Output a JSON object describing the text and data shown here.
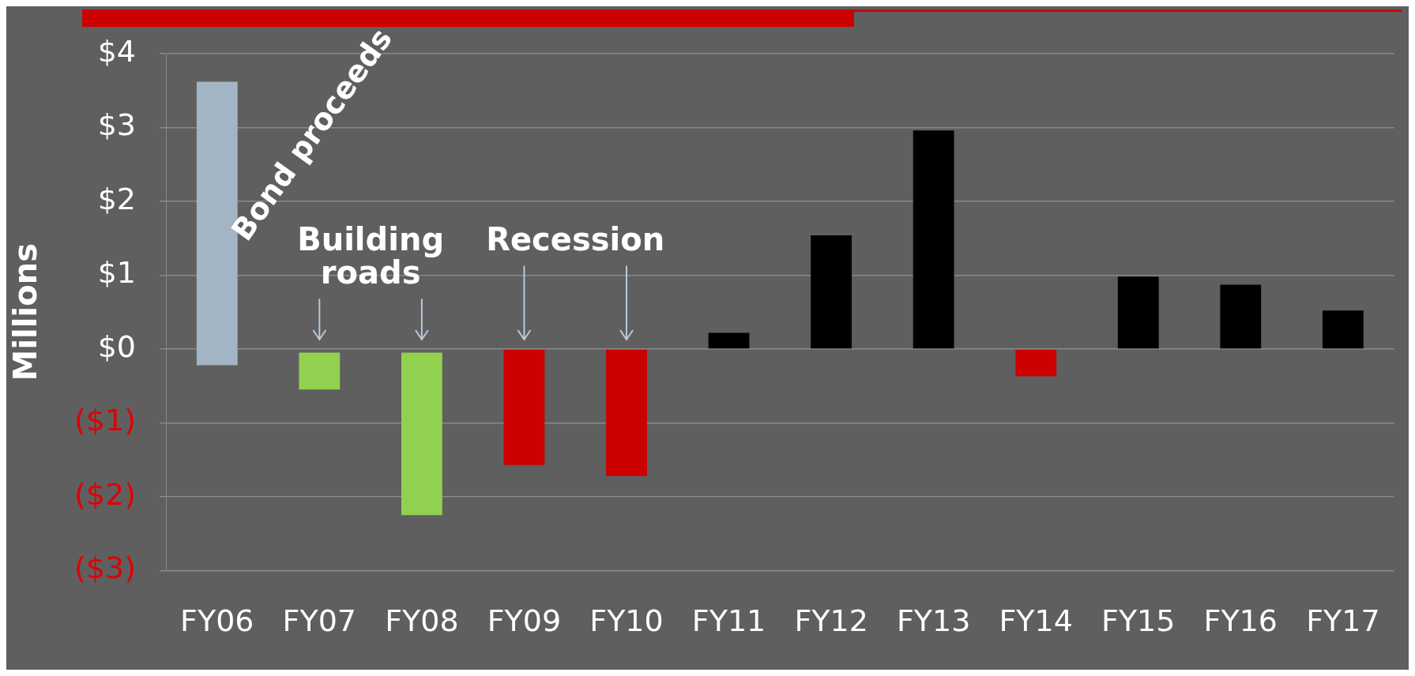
{
  "chart_data": {
    "type": "bar",
    "ylabel": "Millions",
    "categories": [
      "FY06",
      "FY07",
      "FY08",
      "FY09",
      "FY10",
      "FY11",
      "FY12",
      "FY13",
      "FY14",
      "FY15",
      "FY16",
      "FY17"
    ],
    "values": [
      3.84,
      -0.5,
      -2.2,
      -1.57,
      -1.72,
      0.22,
      1.54,
      2.96,
      -0.37,
      0.98,
      0.87,
      0.52
    ],
    "base": [
      -0.22,
      -0.05,
      -0.05,
      0,
      0,
      0,
      0,
      0,
      0,
      0,
      0,
      0
    ],
    "colors": [
      "#a3b4c4",
      "#92d050",
      "#92d050",
      "#cc0000",
      "#cc0000",
      "#000000",
      "#000000",
      "#000000",
      "#cc0000",
      "#000000",
      "#000000",
      "#000000"
    ],
    "ylim": [
      -3,
      4
    ],
    "yticks": [
      {
        "value": 4,
        "label": "$4"
      },
      {
        "value": 3,
        "label": "$3"
      },
      {
        "value": 2,
        "label": "$2"
      },
      {
        "value": 1,
        "label": "$1"
      },
      {
        "value": 0,
        "label": "$0"
      },
      {
        "value": -1,
        "label": "($1)"
      },
      {
        "value": -2,
        "label": "($2)"
      },
      {
        "value": -3,
        "label": "($3)"
      }
    ],
    "annotations": [
      "Bond proceeds",
      "Building roads",
      "Recession"
    ],
    "grid": "y",
    "legend": false
  }
}
